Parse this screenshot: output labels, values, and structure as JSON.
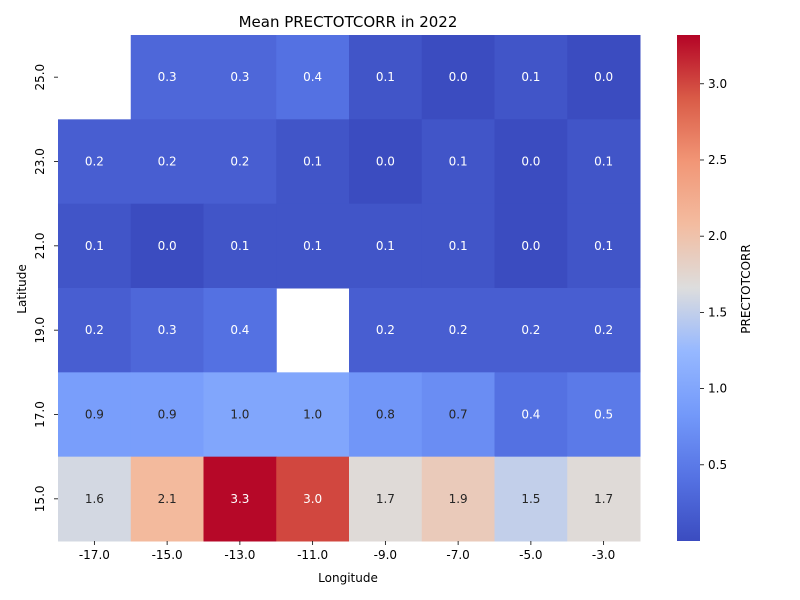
{
  "chart_data": {
    "type": "heatmap",
    "title": "Mean PRECTOTCORR in 2022",
    "xlabel": "Longitude",
    "ylabel": "Latitude",
    "colorbar_label": "PRECTOTCORR",
    "colormap": "coolwarm",
    "x_categories": [
      "-17.0",
      "-15.0",
      "-13.0",
      "-11.0",
      "-9.0",
      "-7.0",
      "-5.0",
      "-3.0"
    ],
    "y_categories": [
      "25.0",
      "23.0",
      "21.0",
      "19.0",
      "17.0",
      "15.0"
    ],
    "values": [
      [
        null,
        0.3,
        0.3,
        0.4,
        0.1,
        0.0,
        0.1,
        0.0
      ],
      [
        0.2,
        0.2,
        0.2,
        0.1,
        0.0,
        0.1,
        0.0,
        0.1
      ],
      [
        0.1,
        0.0,
        0.1,
        0.1,
        0.1,
        0.1,
        0.0,
        0.1
      ],
      [
        0.2,
        0.3,
        0.4,
        null,
        0.2,
        0.2,
        0.2,
        0.2
      ],
      [
        0.9,
        0.9,
        1.0,
        1.0,
        0.8,
        0.7,
        0.4,
        0.5
      ],
      [
        1.6,
        2.1,
        3.3,
        3.0,
        1.7,
        1.9,
        1.5,
        1.7
      ]
    ],
    "value_range": [
      0.0,
      3.32
    ],
    "colorbar_ticks": [
      "0.5",
      "1.0",
      "1.5",
      "2.0",
      "2.5",
      "3.0"
    ]
  }
}
